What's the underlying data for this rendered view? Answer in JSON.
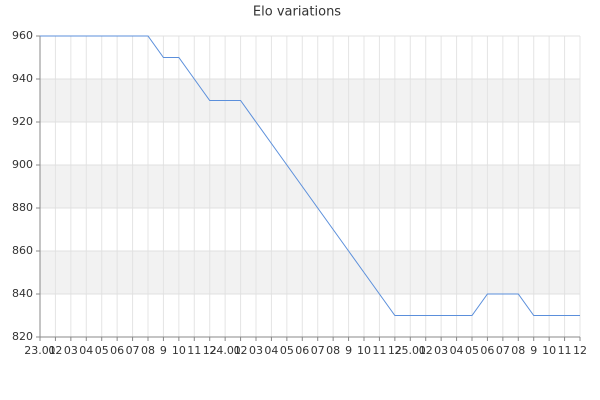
{
  "chart_data": {
    "type": "line",
    "title": "Elo variations",
    "categories": [
      "23.01",
      "02",
      "03",
      "04",
      "05",
      "06",
      "07",
      "08",
      "9",
      "10",
      "11",
      "12",
      "24.01",
      "02",
      "03",
      "04",
      "05",
      "06",
      "07",
      "08",
      "9",
      "10",
      "11",
      "12",
      "25.01",
      "02",
      "03",
      "04",
      "05",
      "06",
      "07",
      "08",
      "9",
      "10",
      "11",
      "12"
    ],
    "values": [
      960,
      960,
      960,
      960,
      960,
      960,
      960,
      960,
      950,
      950,
      940,
      930,
      930,
      930,
      920,
      910,
      900,
      890,
      880,
      870,
      860,
      850,
      840,
      830,
      830,
      830,
      830,
      830,
      830,
      840,
      840,
      840,
      830,
      830,
      830,
      830
    ],
    "color": "#5b8fdb",
    "ylim": [
      820,
      960
    ],
    "yticks": [
      820,
      840,
      860,
      880,
      900,
      920,
      940,
      960
    ],
    "grid": true
  }
}
